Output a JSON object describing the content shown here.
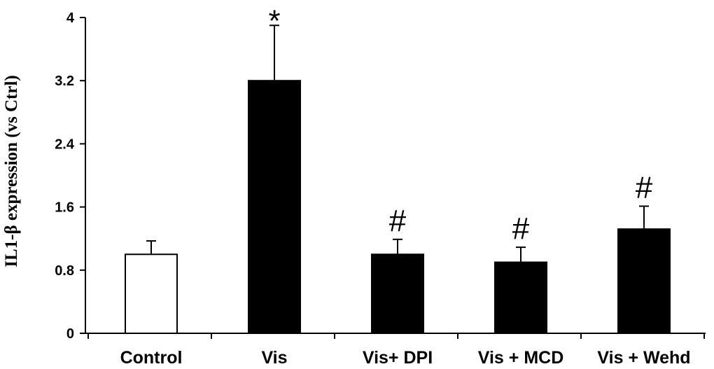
{
  "chart_data": {
    "type": "bar",
    "title": "",
    "xlabel": "",
    "ylabel": "IL1-β expression (vs Ctrl)",
    "ylim": [
      0,
      4
    ],
    "yticks": [
      "0",
      "0.8",
      "1.6",
      "2.4",
      "3.2",
      "4"
    ],
    "ytick_values": [
      0,
      0.8,
      1.6,
      2.4,
      3.2,
      4
    ],
    "categories": [
      "Control",
      "Vis",
      "Vis+ DPI",
      "Vis + MCD",
      "Vis + Wehd"
    ],
    "values": [
      1.0,
      3.2,
      1.0,
      0.9,
      1.32
    ],
    "errors": [
      0.17,
      0.7,
      0.19,
      0.19,
      0.29
    ],
    "annotations": [
      "",
      "*",
      "#",
      "#",
      "#"
    ],
    "fills": [
      "#ffffff",
      "#000000",
      "#000000",
      "#000000",
      "#000000"
    ],
    "grid": false,
    "legend": "none"
  }
}
